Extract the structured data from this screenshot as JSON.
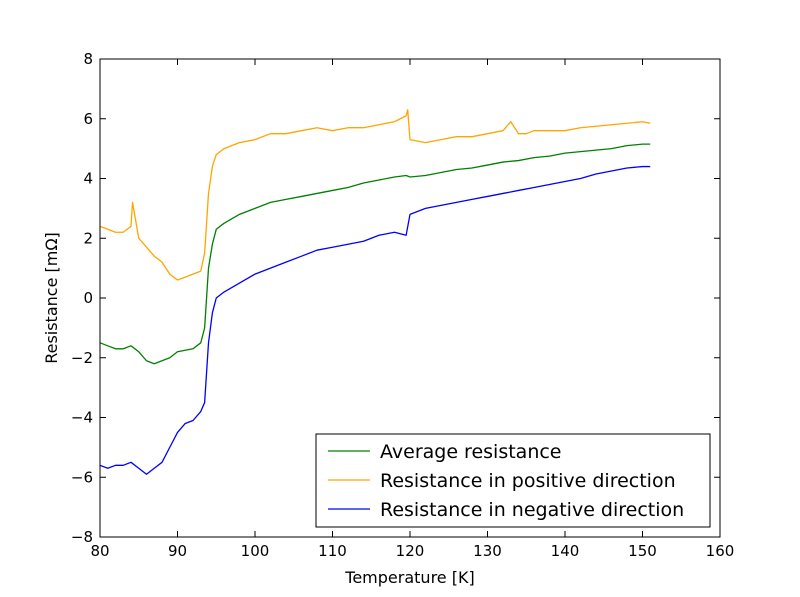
{
  "chart_data": {
    "type": "line",
    "title": "",
    "xlabel": "Temperature [K]",
    "ylabel": "Resistance [mΩ]",
    "xlim": [
      80,
      160
    ],
    "ylim": [
      -8,
      8
    ],
    "xticks": [
      80,
      90,
      100,
      110,
      120,
      130,
      140,
      150,
      160
    ],
    "yticks": [
      8,
      6,
      4,
      2,
      0,
      -2,
      -4,
      -6,
      -8
    ],
    "xtick_labels": [
      "80",
      "90",
      "100",
      "110",
      "120",
      "130",
      "140",
      "150",
      "160"
    ],
    "ytick_labels": [
      "8",
      "6",
      "4",
      "2",
      "0",
      "−2",
      "−4",
      "−6",
      "−8"
    ],
    "grid": false,
    "legend_position": "lower-right",
    "series": [
      {
        "name": "Average resistance",
        "color": "#008000",
        "x": [
          80,
          81,
          82,
          83,
          84,
          85,
          86,
          87,
          88,
          89,
          90,
          91,
          92,
          93,
          93.5,
          94,
          94.5,
          95,
          96,
          98,
          100,
          102,
          104,
          106,
          108,
          110,
          112,
          114,
          116,
          118,
          119.5,
          120,
          122,
          124,
          126,
          128,
          130,
          132,
          134,
          136,
          138,
          140,
          142,
          144,
          146,
          148,
          150,
          151
        ],
        "y": [
          -1.5,
          -1.6,
          -1.7,
          -1.7,
          -1.6,
          -1.8,
          -2.1,
          -2.2,
          -2.1,
          -2.0,
          -1.8,
          -1.75,
          -1.7,
          -1.5,
          -1.0,
          1.0,
          1.8,
          2.3,
          2.5,
          2.8,
          3.0,
          3.2,
          3.3,
          3.4,
          3.5,
          3.6,
          3.7,
          3.85,
          3.95,
          4.05,
          4.1,
          4.05,
          4.1,
          4.2,
          4.3,
          4.35,
          4.45,
          4.55,
          4.6,
          4.7,
          4.75,
          4.85,
          4.9,
          4.95,
          5.0,
          5.1,
          5.15,
          5.15
        ]
      },
      {
        "name": "Resistance in positive direction",
        "color": "#FFA500",
        "x": [
          80,
          81,
          82,
          83,
          84,
          84.2,
          85,
          86,
          87,
          88,
          89,
          90,
          91,
          92,
          93,
          93.5,
          94,
          94.5,
          95,
          96,
          98,
          100,
          102,
          104,
          106,
          108,
          110,
          112,
          114,
          116,
          118,
          119.5,
          119.7,
          120,
          122,
          124,
          126,
          128,
          130,
          132,
          133,
          134,
          135,
          136,
          138,
          140,
          142,
          144,
          146,
          148,
          150,
          151
        ],
        "y": [
          2.4,
          2.3,
          2.2,
          2.2,
          2.4,
          3.2,
          2.0,
          1.7,
          1.4,
          1.2,
          0.8,
          0.6,
          0.7,
          0.8,
          0.9,
          1.5,
          3.5,
          4.4,
          4.8,
          5.0,
          5.2,
          5.3,
          5.5,
          5.5,
          5.6,
          5.7,
          5.6,
          5.7,
          5.7,
          5.8,
          5.9,
          6.1,
          6.3,
          5.3,
          5.2,
          5.3,
          5.4,
          5.4,
          5.5,
          5.6,
          5.9,
          5.5,
          5.5,
          5.6,
          5.6,
          5.6,
          5.7,
          5.75,
          5.8,
          5.85,
          5.9,
          5.85
        ]
      },
      {
        "name": "Resistance in negative direction",
        "color": "#0000FF",
        "x": [
          80,
          81,
          82,
          83,
          84,
          85,
          86,
          87,
          88,
          89,
          90,
          91,
          92,
          93,
          93.5,
          94,
          94.5,
          95,
          96,
          98,
          100,
          102,
          104,
          106,
          108,
          110,
          112,
          114,
          116,
          118,
          119.5,
          120,
          122,
          124,
          126,
          128,
          130,
          132,
          134,
          136,
          138,
          140,
          142,
          144,
          146,
          148,
          150,
          151
        ],
        "y": [
          -5.6,
          -5.7,
          -5.6,
          -5.6,
          -5.5,
          -5.7,
          -5.9,
          -5.7,
          -5.5,
          -5.0,
          -4.5,
          -4.2,
          -4.1,
          -3.8,
          -3.5,
          -1.5,
          -0.5,
          0.0,
          0.2,
          0.5,
          0.8,
          1.0,
          1.2,
          1.4,
          1.6,
          1.7,
          1.8,
          1.9,
          2.1,
          2.2,
          2.1,
          2.8,
          3.0,
          3.1,
          3.2,
          3.3,
          3.4,
          3.5,
          3.6,
          3.7,
          3.8,
          3.9,
          4.0,
          4.15,
          4.25,
          4.35,
          4.4,
          4.4
        ]
      }
    ]
  }
}
